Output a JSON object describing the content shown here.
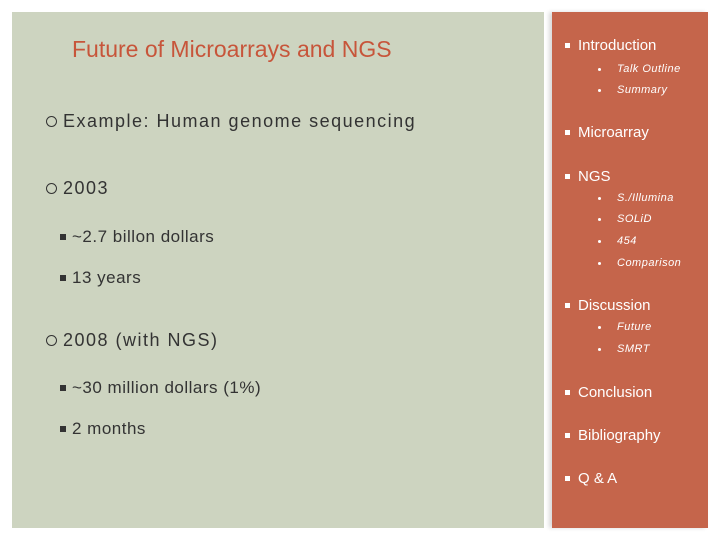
{
  "title": "Future of Microarrays and NGS",
  "left_items": [
    {
      "level": 1,
      "text": "Example: Human genome sequencing"
    },
    {
      "level": 1,
      "text": "2003"
    },
    {
      "level": 2,
      "text": "~2.7 billon dollars"
    },
    {
      "level": 2,
      "text": "13 years"
    },
    {
      "level": 1,
      "text": "2008 (with NGS)"
    },
    {
      "level": 2,
      "text": "~30 million dollars (1%)"
    },
    {
      "level": 2,
      "text": "2 months"
    }
  ],
  "outline": {
    "introduction": "Introduction",
    "talk_outline": "Talk Outline",
    "summary": "Summary",
    "microarray": "Microarray",
    "ngs": "NGS",
    "illumina": "S./Illumina",
    "solid": "SOLiD",
    "n454": "454",
    "comparison": "Comparison",
    "discussion": "Discussion",
    "future": "Future",
    "smrt": "SMRT",
    "conclusion": "Conclusion",
    "bibliography": "Bibliography",
    "qa": "Q & A"
  },
  "colors": {
    "left_panel": "#cdd4c0",
    "right_panel": "#c5654b",
    "title": "#c7553a"
  }
}
